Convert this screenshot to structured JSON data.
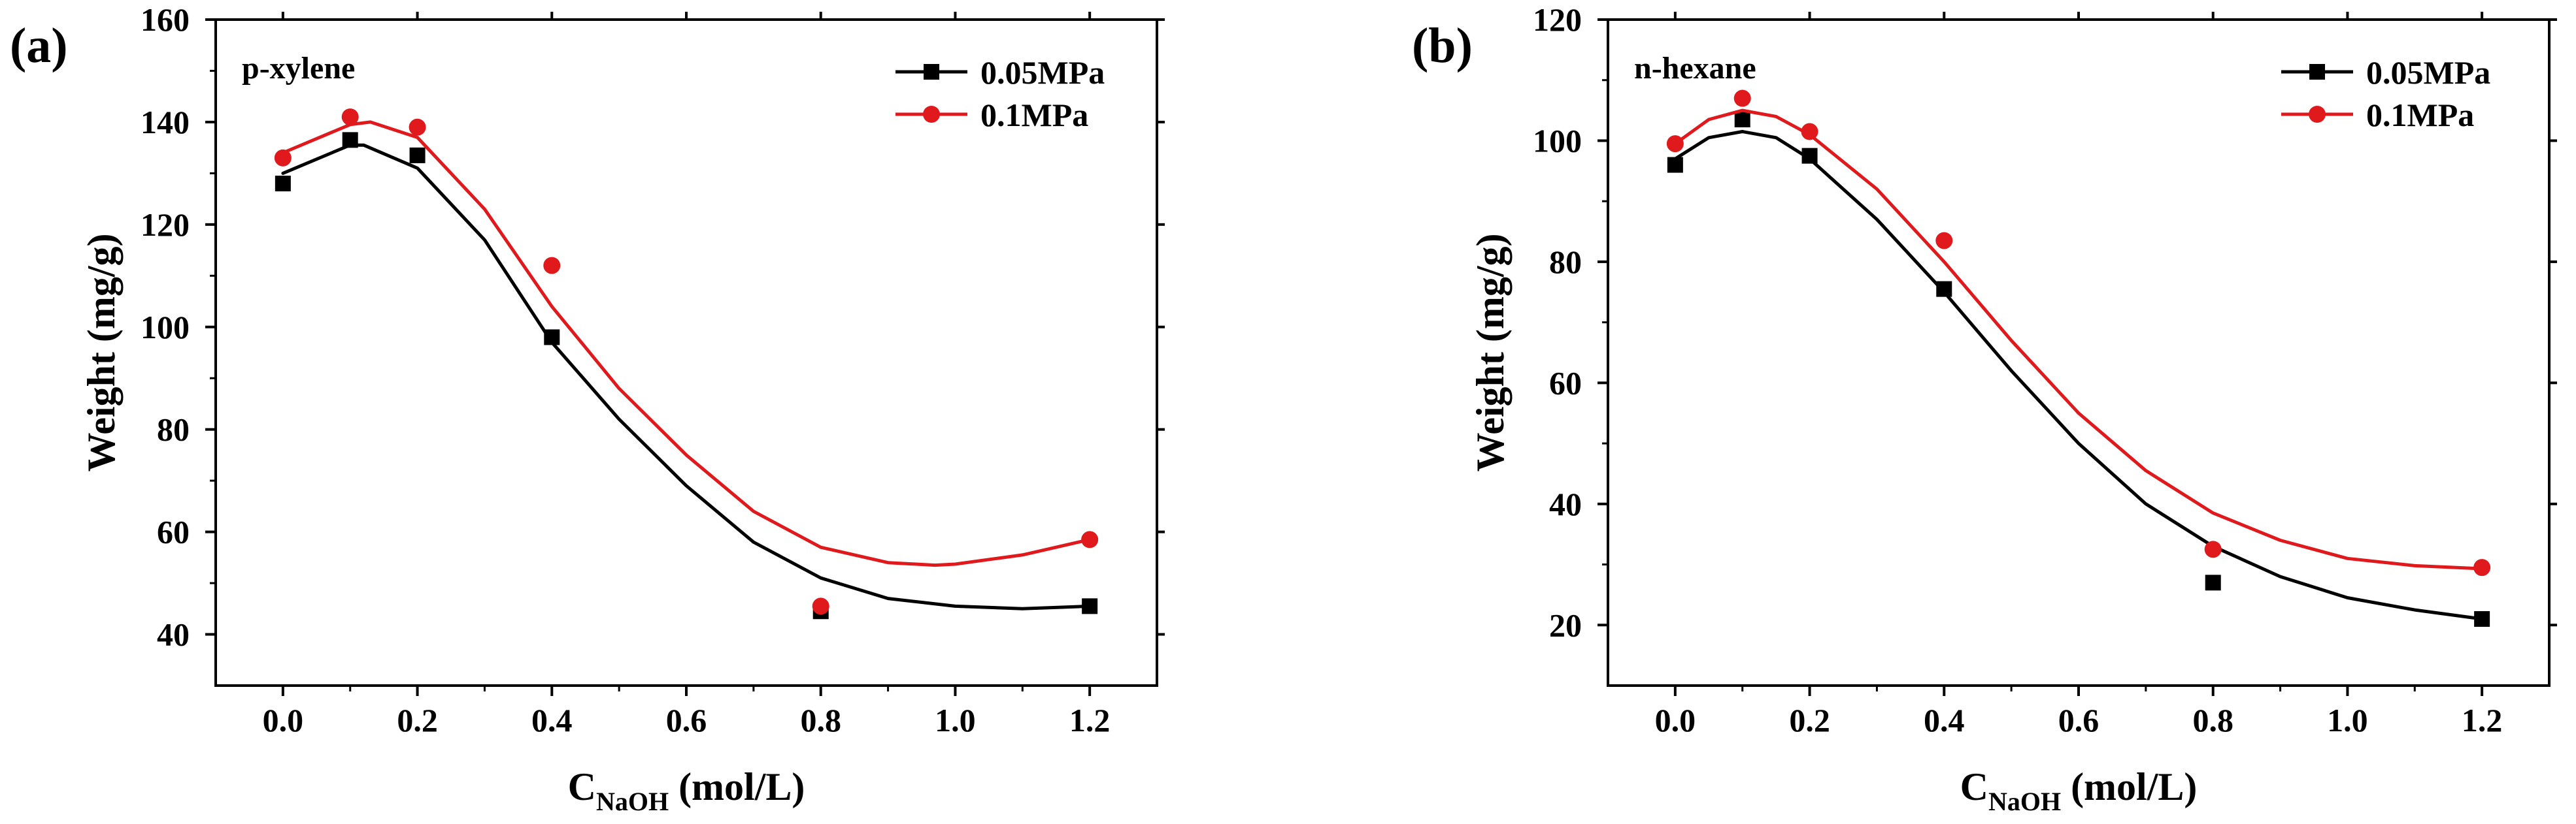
{
  "chart_data": [
    {
      "type": "scatter",
      "panel_label": "(a)",
      "title": "p-xylene",
      "xlabel": {
        "main": "C",
        "sub": "NaOH",
        "rest": " (mol/L)"
      },
      "ylabel": "Weight (mg/g)",
      "xlim": [
        -0.1,
        1.3
      ],
      "ylim": [
        30,
        160
      ],
      "xticks": [
        0.0,
        0.2,
        0.4,
        0.6,
        0.8,
        1.0,
        1.2
      ],
      "xtick_labels": [
        "0.0",
        "0.2",
        "0.4",
        "0.6",
        "0.8",
        "1.0",
        "1.2"
      ],
      "yticks": [
        40,
        60,
        80,
        100,
        120,
        140,
        160
      ],
      "ytick_labels": [
        "40",
        "60",
        "80",
        "100",
        "120",
        "140",
        "160"
      ],
      "legend_position": "top-right",
      "series": [
        {
          "name": "0.05MPa",
          "color": "#000000",
          "marker": "square",
          "x": [
            0.0,
            0.1,
            0.2,
            0.4,
            0.8,
            1.2
          ],
          "y": [
            128,
            136.5,
            133.5,
            98,
            44.5,
            45.5
          ],
          "fit_curve": {
            "x": [
              0.0,
              0.1,
              0.12,
              0.2,
              0.3,
              0.4,
              0.5,
              0.6,
              0.7,
              0.8,
              0.9,
              1.0,
              1.1,
              1.2
            ],
            "y": [
              130,
              135.5,
              135.5,
              131,
              117,
              97,
              82,
              69,
              58,
              51,
              47,
              45.5,
              45,
              45.5
            ]
          }
        },
        {
          "name": "0.1MPa",
          "color": "#e0191c",
          "marker": "circle",
          "x": [
            0.0,
            0.1,
            0.2,
            0.4,
            0.8,
            1.2
          ],
          "y": [
            133,
            141,
            139,
            112,
            45.5,
            58.5
          ],
          "fit_curve": {
            "x": [
              0.0,
              0.1,
              0.13,
              0.2,
              0.3,
              0.4,
              0.5,
              0.6,
              0.7,
              0.8,
              0.9,
              0.97,
              1.0,
              1.1,
              1.2
            ],
            "y": [
              134,
              139.5,
              140,
              137,
              123,
              104,
              88,
              75,
              64,
              57,
              54,
              53.5,
              53.7,
              55.5,
              58.5
            ]
          }
        }
      ]
    },
    {
      "type": "scatter",
      "panel_label": "(b)",
      "title": "n-hexane",
      "xlabel": {
        "main": "C",
        "sub": "NaOH",
        "rest": " (mol/L)"
      },
      "ylabel": "Weight (mg/g)",
      "xlim": [
        -0.1,
        1.3
      ],
      "ylim": [
        10,
        120
      ],
      "xticks": [
        0.0,
        0.2,
        0.4,
        0.6,
        0.8,
        1.0,
        1.2
      ],
      "xtick_labels": [
        "0.0",
        "0.2",
        "0.4",
        "0.6",
        "0.8",
        "1.0",
        "1.2"
      ],
      "yticks": [
        20,
        40,
        60,
        80,
        100,
        120
      ],
      "ytick_labels": [
        "20",
        "40",
        "60",
        "80",
        "100",
        "120"
      ],
      "legend_position": "top-right",
      "series": [
        {
          "name": "0.05MPa",
          "color": "#000000",
          "marker": "square",
          "x": [
            0.0,
            0.1,
            0.2,
            0.4,
            0.8,
            1.2
          ],
          "y": [
            96,
            103.5,
            97.5,
            75.5,
            27,
            21
          ],
          "fit_curve": {
            "x": [
              0.0,
              0.05,
              0.1,
              0.15,
              0.2,
              0.3,
              0.4,
              0.5,
              0.6,
              0.7,
              0.8,
              0.9,
              1.0,
              1.1,
              1.2
            ],
            "y": [
              97,
              100.5,
              101.5,
              100.5,
              97,
              87,
              75,
              62,
              50,
              40,
              33,
              28,
              24.5,
              22.5,
              21
            ]
          }
        },
        {
          "name": "0.1MPa",
          "color": "#e0191c",
          "marker": "circle",
          "x": [
            0.0,
            0.1,
            0.2,
            0.4,
            0.8,
            1.2
          ],
          "y": [
            99.5,
            107,
            101.5,
            83.5,
            32.5,
            29.5
          ],
          "fit_curve": {
            "x": [
              0.0,
              0.05,
              0.1,
              0.15,
              0.2,
              0.3,
              0.4,
              0.5,
              0.6,
              0.7,
              0.8,
              0.9,
              1.0,
              1.1,
              1.2
            ],
            "y": [
              99.5,
              103.5,
              105,
              104,
              101,
              92,
              80,
              67,
              55,
              45.5,
              38.5,
              34,
              31,
              29.8,
              29.3
            ]
          }
        }
      ]
    }
  ]
}
